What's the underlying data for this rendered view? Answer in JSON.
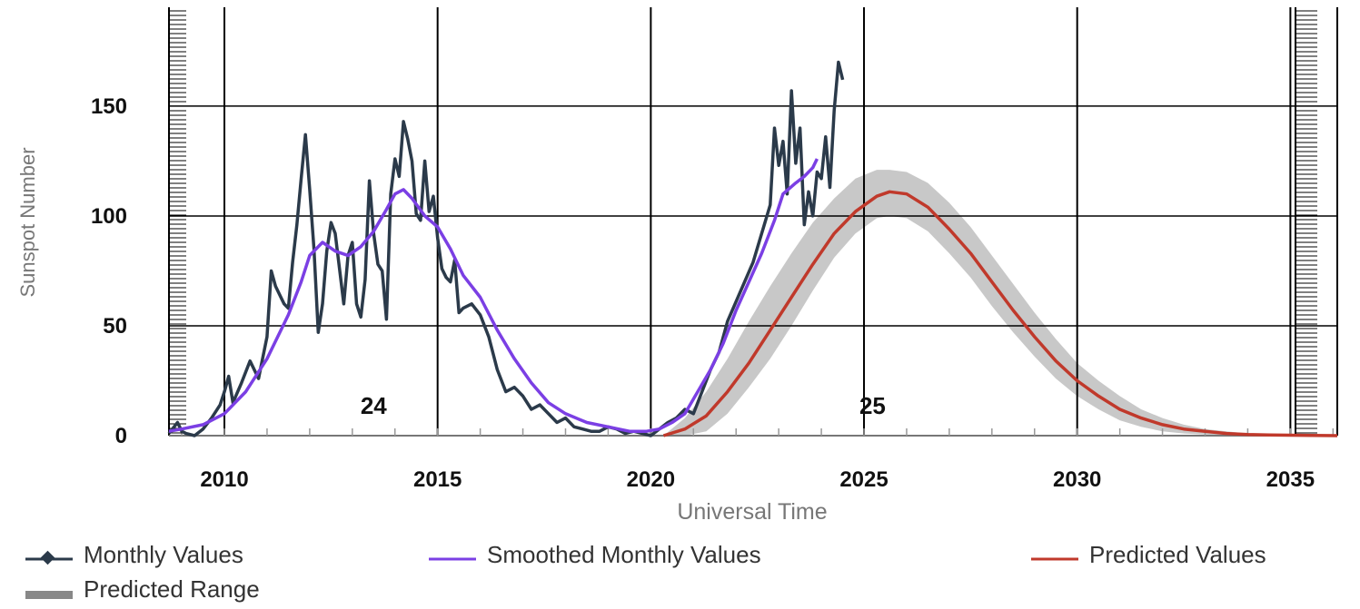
{
  "chart_data": {
    "type": "line",
    "xlabel": "Universal Time",
    "ylabel": "Sunspot Number",
    "xlim": [
      2008.7,
      2036.1
    ],
    "ylim": [
      0,
      195
    ],
    "x_ticks": [
      2010,
      2015,
      2020,
      2025,
      2030,
      2035
    ],
    "y_ticks": [
      0,
      50,
      100,
      150
    ],
    "x_tick_labels": [
      "2010",
      "2015",
      "2020",
      "2025",
      "2030",
      "2035"
    ],
    "y_tick_labels": [
      "0",
      "50",
      "100",
      "150"
    ],
    "grid": true,
    "legend_position": "bottom",
    "annotations": [
      {
        "text": "24",
        "x": 2013.5,
        "y": 8
      },
      {
        "text": "25",
        "x": 2025.2,
        "y": 8
      }
    ],
    "series": [
      {
        "name": "Monthly Values",
        "color": "#2b3a4a",
        "x": [
          2008.7,
          2008.9,
          2009.0,
          2009.1,
          2009.3,
          2009.5,
          2009.7,
          2009.9,
          2010.0,
          2010.1,
          2010.2,
          2010.4,
          2010.6,
          2010.8,
          2011.0,
          2011.1,
          2011.2,
          2011.4,
          2011.5,
          2011.6,
          2011.7,
          2011.8,
          2011.9,
          2012.0,
          2012.1,
          2012.2,
          2012.3,
          2012.4,
          2012.5,
          2012.6,
          2012.7,
          2012.8,
          2012.9,
          2013.0,
          2013.1,
          2013.2,
          2013.3,
          2013.4,
          2013.5,
          2013.6,
          2013.7,
          2013.8,
          2013.9,
          2014.0,
          2014.1,
          2014.2,
          2014.3,
          2014.4,
          2014.5,
          2014.6,
          2014.7,
          2014.8,
          2014.9,
          2015.0,
          2015.1,
          2015.2,
          2015.3,
          2015.4,
          2015.5,
          2015.6,
          2015.8,
          2016.0,
          2016.2,
          2016.4,
          2016.6,
          2016.8,
          2017.0,
          2017.2,
          2017.4,
          2017.6,
          2017.8,
          2018.0,
          2018.2,
          2018.4,
          2018.6,
          2018.8,
          2019.0,
          2019.2,
          2019.4,
          2019.6,
          2019.8,
          2020.0,
          2020.2,
          2020.4,
          2020.6,
          2020.8,
          2021.0,
          2021.2,
          2021.4,
          2021.6,
          2021.8,
          2022.0,
          2022.2,
          2022.4,
          2022.6,
          2022.8,
          2022.9,
          2023.0,
          2023.1,
          2023.2,
          2023.3,
          2023.4,
          2023.5,
          2023.6,
          2023.7,
          2023.8,
          2023.9,
          2024.0,
          2024.1,
          2024.2,
          2024.3,
          2024.4,
          2024.5
        ],
        "y": [
          1,
          6,
          2,
          1,
          0,
          3,
          8,
          14,
          20,
          27,
          15,
          24,
          34,
          26,
          45,
          75,
          68,
          60,
          58,
          79,
          96,
          117,
          137,
          112,
          85,
          47,
          60,
          84,
          97,
          92,
          76,
          60,
          82,
          88,
          60,
          54,
          71,
          116,
          92,
          78,
          75,
          53,
          110,
          126,
          118,
          143,
          135,
          125,
          101,
          98,
          125,
          102,
          109,
          90,
          76,
          72,
          70,
          80,
          56,
          58,
          60,
          55,
          45,
          30,
          20,
          22,
          18,
          12,
          14,
          10,
          6,
          8,
          4,
          3,
          2,
          2,
          4,
          3,
          1,
          2,
          1,
          0,
          3,
          6,
          8,
          12,
          10,
          20,
          30,
          38,
          52,
          61,
          70,
          79,
          92,
          105,
          140,
          123,
          134,
          110,
          157,
          124,
          140,
          96,
          111,
          100,
          120,
          117,
          136,
          113,
          148,
          170,
          162
        ]
      },
      {
        "name": "Smoothed Monthly Values",
        "color": "#7b3fe4",
        "x": [
          2008.7,
          2009.0,
          2009.5,
          2010.0,
          2010.5,
          2011.0,
          2011.5,
          2011.8,
          2012.0,
          2012.3,
          2012.6,
          2012.9,
          2013.2,
          2013.5,
          2013.8,
          2014.0,
          2014.2,
          2014.4,
          2014.7,
          2015.0,
          2015.3,
          2015.6,
          2016.0,
          2016.4,
          2016.8,
          2017.2,
          2017.6,
          2018.0,
          2018.5,
          2019.0,
          2019.5,
          2019.9,
          2020.2,
          2020.5,
          2020.8,
          2021.1,
          2021.4,
          2021.7,
          2022.0,
          2022.3,
          2022.6,
          2022.9,
          2023.1,
          2023.4,
          2023.6,
          2023.8,
          2023.9
        ],
        "y": [
          2,
          3,
          5,
          10,
          20,
          35,
          55,
          70,
          82,
          88,
          84,
          82,
          86,
          93,
          103,
          110,
          112,
          108,
          100,
          95,
          85,
          73,
          63,
          48,
          35,
          24,
          15,
          10,
          6,
          4,
          2,
          2,
          3,
          6,
          10,
          20,
          30,
          42,
          57,
          70,
          83,
          98,
          110,
          115,
          118,
          122,
          126
        ]
      },
      {
        "name": "Predicted Values",
        "color": "#c0392b",
        "x": [
          2020.3,
          2020.8,
          2021.3,
          2021.8,
          2022.3,
          2022.8,
          2023.3,
          2023.8,
          2024.3,
          2024.8,
          2025.3,
          2025.6,
          2026.0,
          2026.5,
          2027.0,
          2027.5,
          2028.0,
          2028.5,
          2029.0,
          2029.5,
          2030.0,
          2030.5,
          2031.0,
          2031.5,
          2032.0,
          2032.5,
          2033.0,
          2033.5,
          2034.0,
          2034.5,
          2035.0,
          2035.5,
          2036.1
        ],
        "y": [
          0,
          3,
          9,
          20,
          33,
          48,
          63,
          78,
          92,
          102,
          109,
          111,
          110,
          104,
          94,
          83,
          70,
          57,
          45,
          34,
          25,
          18,
          12,
          8,
          5,
          3,
          2,
          1,
          0.5,
          0.3,
          0.2,
          0.1,
          0
        ]
      },
      {
        "name": "Predicted Range",
        "color": "#c8c8c8",
        "x": [
          2020.3,
          2020.8,
          2021.3,
          2021.8,
          2022.3,
          2022.8,
          2023.3,
          2023.8,
          2024.3,
          2024.8,
          2025.3,
          2025.6,
          2026.0,
          2026.5,
          2027.0,
          2027.5,
          2028.0,
          2028.5,
          2029.0,
          2029.5,
          2030.0,
          2030.5,
          2031.0,
          2031.5,
          2032.0,
          2032.5,
          2033.0,
          2033.5,
          2034.0,
          2034.5,
          2035.0,
          2035.5,
          2036.1
        ],
        "lower": [
          0,
          0,
          2,
          10,
          22,
          35,
          50,
          66,
          81,
          92,
          99,
          100,
          99,
          93,
          83,
          72,
          59,
          47,
          36,
          26,
          18,
          12,
          7,
          4,
          2,
          1,
          0.5,
          0.2,
          0,
          0,
          0,
          0,
          0
        ],
        "upper": [
          0,
          8,
          20,
          35,
          52,
          68,
          83,
          97,
          108,
          117,
          121,
          121,
          120,
          115,
          106,
          95,
          82,
          69,
          56,
          44,
          33,
          25,
          18,
          12,
          8,
          5,
          3,
          2,
          1,
          0.5,
          0.3,
          0.1,
          0
        ]
      }
    ]
  },
  "legend": {
    "monthly": "Monthly Values",
    "smoothed": "Smoothed Monthly Values",
    "predicted": "Predicted Values",
    "range": "Predicted Range"
  },
  "axes": {
    "xlabel": "Universal Time",
    "ylabel": "Sunspot Number"
  },
  "colors": {
    "monthly": "#2b3a4a",
    "smoothed": "#7b3fe4",
    "predicted": "#c0392b",
    "range": "#c8c8c8",
    "grid": "#000000"
  }
}
